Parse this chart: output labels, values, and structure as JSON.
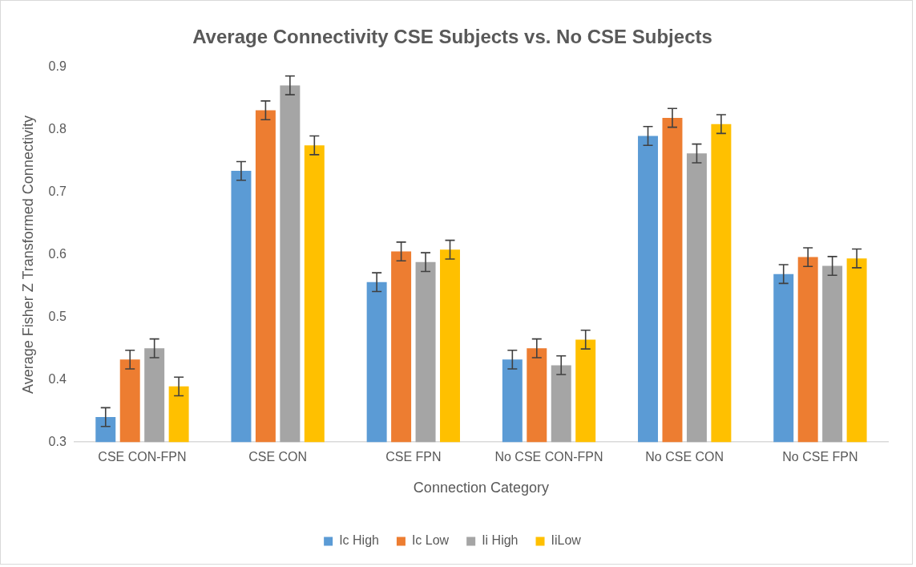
{
  "chart_data": {
    "type": "bar",
    "title": "Average Connectivity CSE Subjects vs. No CSE Subjects",
    "xlabel": "Connection Category",
    "ylabel": "Average Fisher Z Transformed Connectivity",
    "categories": [
      "CSE CON-FPN",
      "CSE CON",
      "CSE FPN",
      "No CSE CON-FPN",
      "No CSE CON",
      "No CSE FPN"
    ],
    "series": [
      {
        "name": "Ic High",
        "color": "#5b9bd5",
        "values": [
          0.34,
          0.734,
          0.556,
          0.432,
          0.79,
          0.569
        ],
        "errors": [
          0.015,
          0.015,
          0.015,
          0.015,
          0.015,
          0.015
        ]
      },
      {
        "name": "Ic Low",
        "color": "#ed7d31",
        "values": [
          0.432,
          0.831,
          0.605,
          0.45,
          0.819,
          0.596
        ],
        "errors": [
          0.015,
          0.015,
          0.015,
          0.015,
          0.015,
          0.015
        ]
      },
      {
        "name": "Ii High",
        "color": "#a5a5a5",
        "values": [
          0.45,
          0.871,
          0.588,
          0.423,
          0.762,
          0.582
        ],
        "errors": [
          0.015,
          0.015,
          0.015,
          0.015,
          0.015,
          0.015
        ]
      },
      {
        "name": "IiLow",
        "color": "#ffc000",
        "values": [
          0.389,
          0.775,
          0.608,
          0.464,
          0.809,
          0.594
        ],
        "errors": [
          0.015,
          0.015,
          0.015,
          0.015,
          0.015,
          0.015
        ]
      }
    ],
    "ylim": [
      0.3,
      0.9
    ],
    "yticks": [
      0.3,
      0.4,
      0.5,
      0.6,
      0.7,
      0.8,
      0.9
    ],
    "grid": false,
    "legend": "bottom"
  }
}
